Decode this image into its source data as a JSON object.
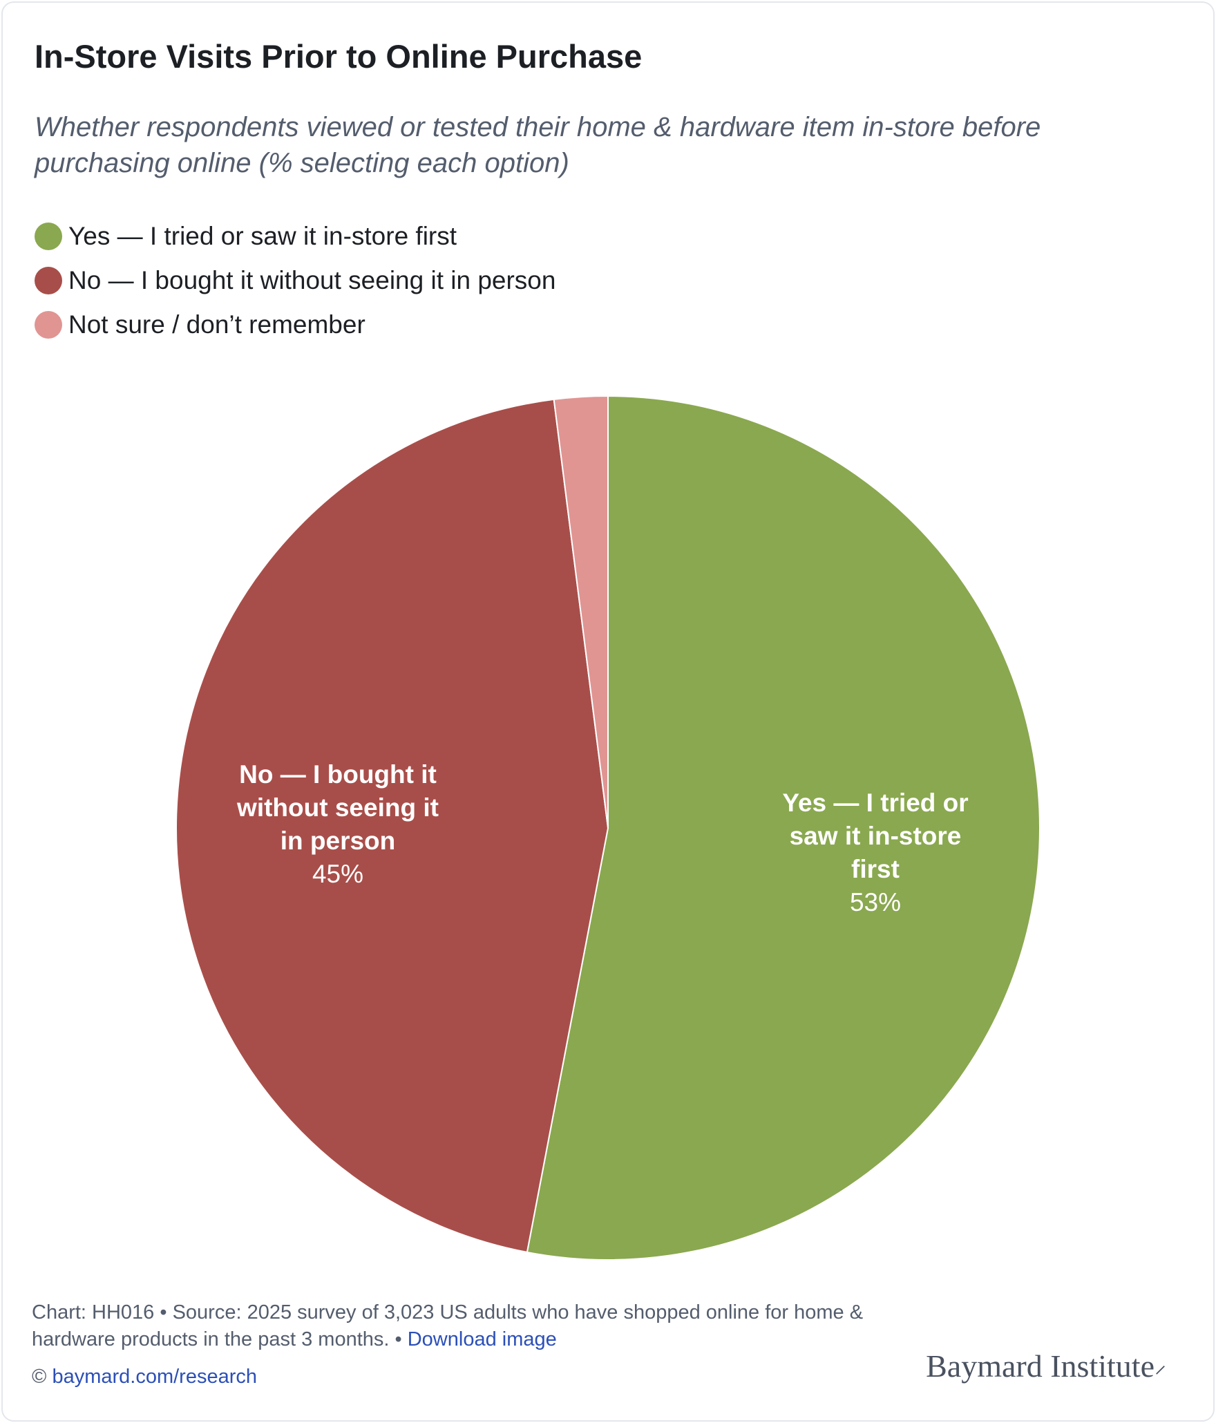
{
  "title": "In-Store Visits Prior to Online Purchase",
  "subtitle": "Whether respondents viewed or tested their home & hardware item in-store before purchasing online (% selecting each option)",
  "chart_data": {
    "type": "pie",
    "legend_position": "top-left",
    "start_angle": "12 o'clock, clockwise",
    "slices": [
      {
        "name": "Yes — I tried or saw it in-store first",
        "value": 53,
        "label_lines": [
          "Yes — I tried or",
          "saw it in-store",
          "first"
        ],
        "value_label": "53%",
        "color": "#8aa84f"
      },
      {
        "name": "No — I bought it without seeing it in person",
        "value": 45,
        "label_lines": [
          "No — I bought it",
          "without seeing it",
          "in person"
        ],
        "value_label": "45%",
        "color": "#a84e4a"
      },
      {
        "name": "Not sure / don’t remember",
        "value": 2,
        "color": "#e09593"
      }
    ]
  },
  "footer": {
    "source": "Chart: HH016 • Source: 2025 survey of 3,023 US adults who have shopped online for home & hardware products in the past 3 months. •",
    "download_link": "Download image",
    "copyright_symbol": "©",
    "site_link": "baymard.com/research",
    "logo_text": "Baymard Institute"
  }
}
